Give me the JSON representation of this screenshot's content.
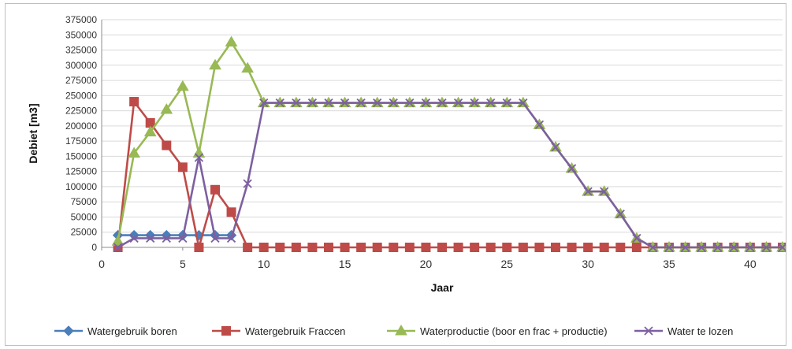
{
  "chart_data": {
    "type": "line",
    "xlabel": "Jaar",
    "ylabel": "Debiet [m3]",
    "xlim": [
      0,
      42
    ],
    "ylim": [
      0,
      375000
    ],
    "x_ticks": [
      0,
      5,
      10,
      15,
      20,
      25,
      30,
      35,
      40
    ],
    "y_ticks": [
      0,
      25000,
      50000,
      75000,
      100000,
      125000,
      150000,
      175000,
      200000,
      225000,
      250000,
      275000,
      300000,
      325000,
      350000,
      375000
    ],
    "grid": "horizontal",
    "legend_position": "bottom",
    "x": [
      1,
      2,
      3,
      4,
      5,
      6,
      7,
      8,
      9,
      10,
      11,
      12,
      13,
      14,
      15,
      16,
      17,
      18,
      19,
      20,
      21,
      22,
      23,
      24,
      25,
      26,
      27,
      28,
      29,
      30,
      31,
      32,
      33,
      34,
      35,
      36,
      37,
      38,
      39,
      40,
      41,
      42
    ],
    "series": [
      {
        "name": "Watergebruik boren",
        "color": "#4a7ebb",
        "marker": "diamond",
        "values": [
          20000,
          20000,
          20000,
          20000,
          20000,
          20000,
          20000,
          20000,
          null,
          null,
          null,
          null,
          null,
          null,
          null,
          null,
          null,
          null,
          null,
          null,
          null,
          null,
          null,
          null,
          null,
          null,
          null,
          null,
          null,
          null,
          null,
          null,
          null,
          null,
          null,
          null,
          null,
          null,
          null,
          null,
          null,
          null
        ]
      },
      {
        "name": "Watergebruik Fraccen",
        "color": "#be4b48",
        "marker": "square",
        "values": [
          0,
          240000,
          205000,
          168000,
          132000,
          0,
          95000,
          58000,
          0,
          0,
          0,
          0,
          0,
          0,
          0,
          0,
          0,
          0,
          0,
          0,
          0,
          0,
          0,
          0,
          0,
          0,
          0,
          0,
          0,
          0,
          0,
          0,
          0,
          0,
          0,
          0,
          0,
          0,
          0,
          0,
          0,
          0
        ]
      },
      {
        "name": "Waterproductie (boor en frac + productie)",
        "color": "#98b954",
        "marker": "triangle",
        "values": [
          10000,
          155000,
          190000,
          227000,
          265000,
          155000,
          300000,
          338000,
          295000,
          238000,
          238000,
          238000,
          238000,
          238000,
          238000,
          238000,
          238000,
          238000,
          238000,
          238000,
          238000,
          238000,
          238000,
          238000,
          238000,
          238000,
          202000,
          165000,
          130000,
          92000,
          92000,
          55000,
          15000,
          0,
          0,
          0,
          0,
          0,
          0,
          0,
          0,
          0
        ]
      },
      {
        "name": "Water te lozen",
        "color": "#7d60a0",
        "marker": "x",
        "values": [
          0,
          15000,
          15000,
          15000,
          15000,
          148000,
          15000,
          15000,
          105000,
          238000,
          238000,
          238000,
          238000,
          238000,
          238000,
          238000,
          238000,
          238000,
          238000,
          238000,
          238000,
          238000,
          238000,
          238000,
          238000,
          238000,
          202000,
          165000,
          130000,
          92000,
          92000,
          55000,
          15000,
          0,
          0,
          0,
          0,
          0,
          0,
          0,
          0,
          0
        ]
      }
    ]
  }
}
